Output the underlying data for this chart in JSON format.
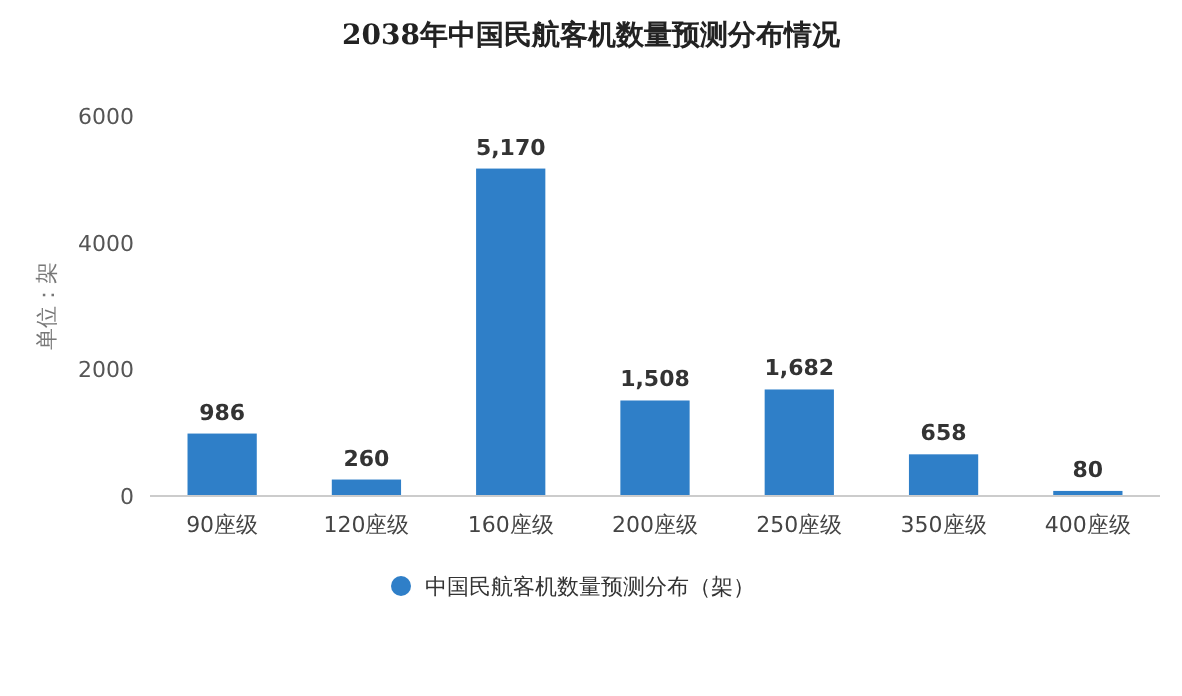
{
  "chart_data": {
    "type": "bar",
    "title": "2038年中国民航客机数量预测分布情况",
    "ylabel": "单位：架",
    "categories": [
      "90座级",
      "120座级",
      "160座级",
      "200座级",
      "250座级",
      "350座级",
      "400座级"
    ],
    "series": [
      {
        "name": "中国民航客机数量预测分布（架）",
        "color": "#2f7fc8",
        "values": [
          986,
          260,
          5170,
          1508,
          1682,
          658,
          80
        ],
        "value_labels": [
          "986",
          "260",
          "5,170",
          "1,508",
          "1,682",
          "658",
          "80"
        ]
      }
    ],
    "ylim": [
      0,
      6000
    ],
    "yticks": [
      0,
      2000,
      4000,
      6000
    ],
    "legend": "bottom"
  }
}
